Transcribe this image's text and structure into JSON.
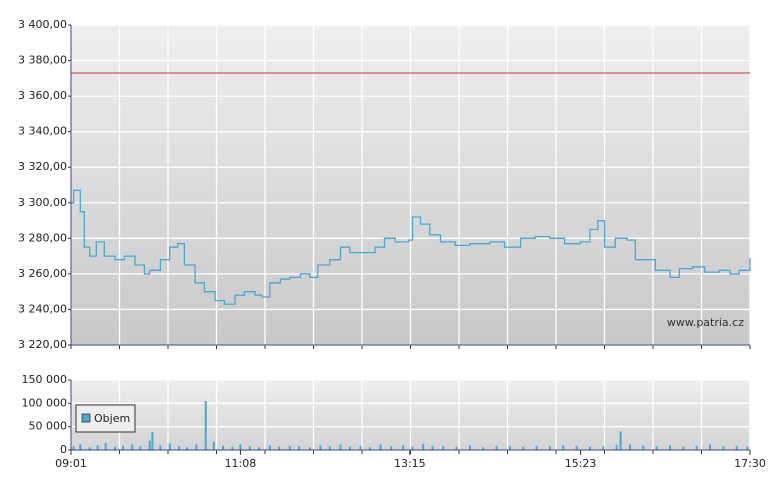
{
  "chart_data": [
    {
      "type": "line",
      "x": [
        541,
        543,
        548,
        551,
        555,
        560,
        566,
        574,
        581,
        589,
        596,
        600,
        608,
        615,
        621,
        626,
        634,
        641,
        649,
        656,
        664,
        671,
        679,
        684,
        690,
        698,
        705,
        713,
        720,
        726,
        735,
        743,
        750,
        758,
        769,
        776,
        784,
        794,
        797,
        803,
        810,
        818,
        829,
        840,
        855,
        866,
        878,
        889,
        900,
        911,
        923,
        930,
        936,
        941,
        949,
        958,
        964,
        973,
        979,
        990,
        997,
        1007,
        1016,
        1027,
        1035,
        1042,
        1050
      ],
      "values": [
        3300,
        3307,
        3295,
        3275,
        3270,
        3278,
        3270,
        3268,
        3270,
        3265,
        3260,
        3262,
        3268,
        3275,
        3277,
        3265,
        3255,
        3250,
        3245,
        3243,
        3248,
        3250,
        3248,
        3247,
        3255,
        3257,
        3258,
        3260,
        3258,
        3265,
        3268,
        3275,
        3272,
        3272,
        3275,
        3280,
        3278,
        3279,
        3292,
        3288,
        3282,
        3278,
        3276,
        3277,
        3278,
        3275,
        3280,
        3281,
        3280,
        3277,
        3278,
        3285,
        3290,
        3275,
        3280,
        3279,
        3268,
        3268,
        3262,
        3258,
        3263,
        3264,
        3261,
        3262,
        3260,
        3262,
        3269
      ],
      "color": "#4aa8d0",
      "xlim": [
        541,
        1050
      ],
      "ylim": [
        3220,
        3400
      ],
      "yticks": [
        {
          "value": 3220,
          "label": "3 220,00"
        },
        {
          "value": 3240,
          "label": "3 240,00"
        },
        {
          "value": 3260,
          "label": "3 260,00"
        },
        {
          "value": 3280,
          "label": "3 280,00"
        },
        {
          "value": 3300,
          "label": "3 300,00"
        },
        {
          "value": 3320,
          "label": "3 320,00"
        },
        {
          "value": 3340,
          "label": "3 340,00"
        },
        {
          "value": 3360,
          "label": "3 360,00"
        },
        {
          "value": 3380,
          "label": "3 380,00"
        },
        {
          "value": 3400,
          "label": "3 400,00"
        }
      ],
      "reference_line": {
        "value": 3373,
        "color": "#cc3333"
      },
      "annotation": "www.patria.cz",
      "grid": true
    },
    {
      "type": "bar",
      "x": [
        543,
        548,
        555,
        561,
        567,
        574,
        580,
        587,
        593,
        600,
        602,
        608,
        615,
        622,
        628,
        635,
        642,
        648,
        655,
        662,
        668,
        675,
        682,
        690,
        697,
        705,
        712,
        720,
        728,
        735,
        743,
        750,
        758,
        765,
        773,
        781,
        790,
        797,
        805,
        812,
        820,
        830,
        840,
        850,
        860,
        870,
        880,
        890,
        900,
        910,
        920,
        930,
        940,
        950,
        953,
        960,
        970,
        980,
        990,
        1000,
        1010,
        1020,
        1030,
        1040,
        1048
      ],
      "series": [
        {
          "name": "Objem",
          "color": "#4aa8d0",
          "values": [
            8000,
            12000,
            6000,
            10000,
            15000,
            7000,
            9000,
            12000,
            8000,
            20000,
            38000,
            10000,
            14000,
            8000,
            6000,
            12000,
            105000,
            18000,
            9000,
            7000,
            12000,
            8000,
            6000,
            10000,
            7000,
            9000,
            8000,
            6000,
            10000,
            8000,
            11000,
            7000,
            9000,
            6000,
            12000,
            8000,
            10000,
            7000,
            13000,
            9000,
            8000,
            7000,
            10000,
            6000,
            9000,
            8000,
            7000,
            9000,
            8000,
            10000,
            9000,
            7000,
            8000,
            11000,
            40000,
            12000,
            9000,
            8000,
            10000,
            7000,
            9000,
            12000,
            8000,
            9000,
            7000
          ]
        }
      ],
      "xlim": [
        541,
        1050
      ],
      "ylim": [
        0,
        150000
      ],
      "yticks": [
        0,
        {
          "value": 50000,
          "label": "50 000"
        },
        {
          "value": 100000,
          "label": "100 000"
        },
        {
          "value": 150000,
          "label": "150 000"
        }
      ],
      "xticks": [
        {
          "value": 541,
          "label": "09:01"
        },
        {
          "value": 668,
          "label": "11:08"
        },
        {
          "value": 795,
          "label": "13:15"
        },
        {
          "value": 923,
          "label": "15:23"
        },
        {
          "value": 1050,
          "label": "17:30"
        }
      ],
      "grid": true
    }
  ]
}
